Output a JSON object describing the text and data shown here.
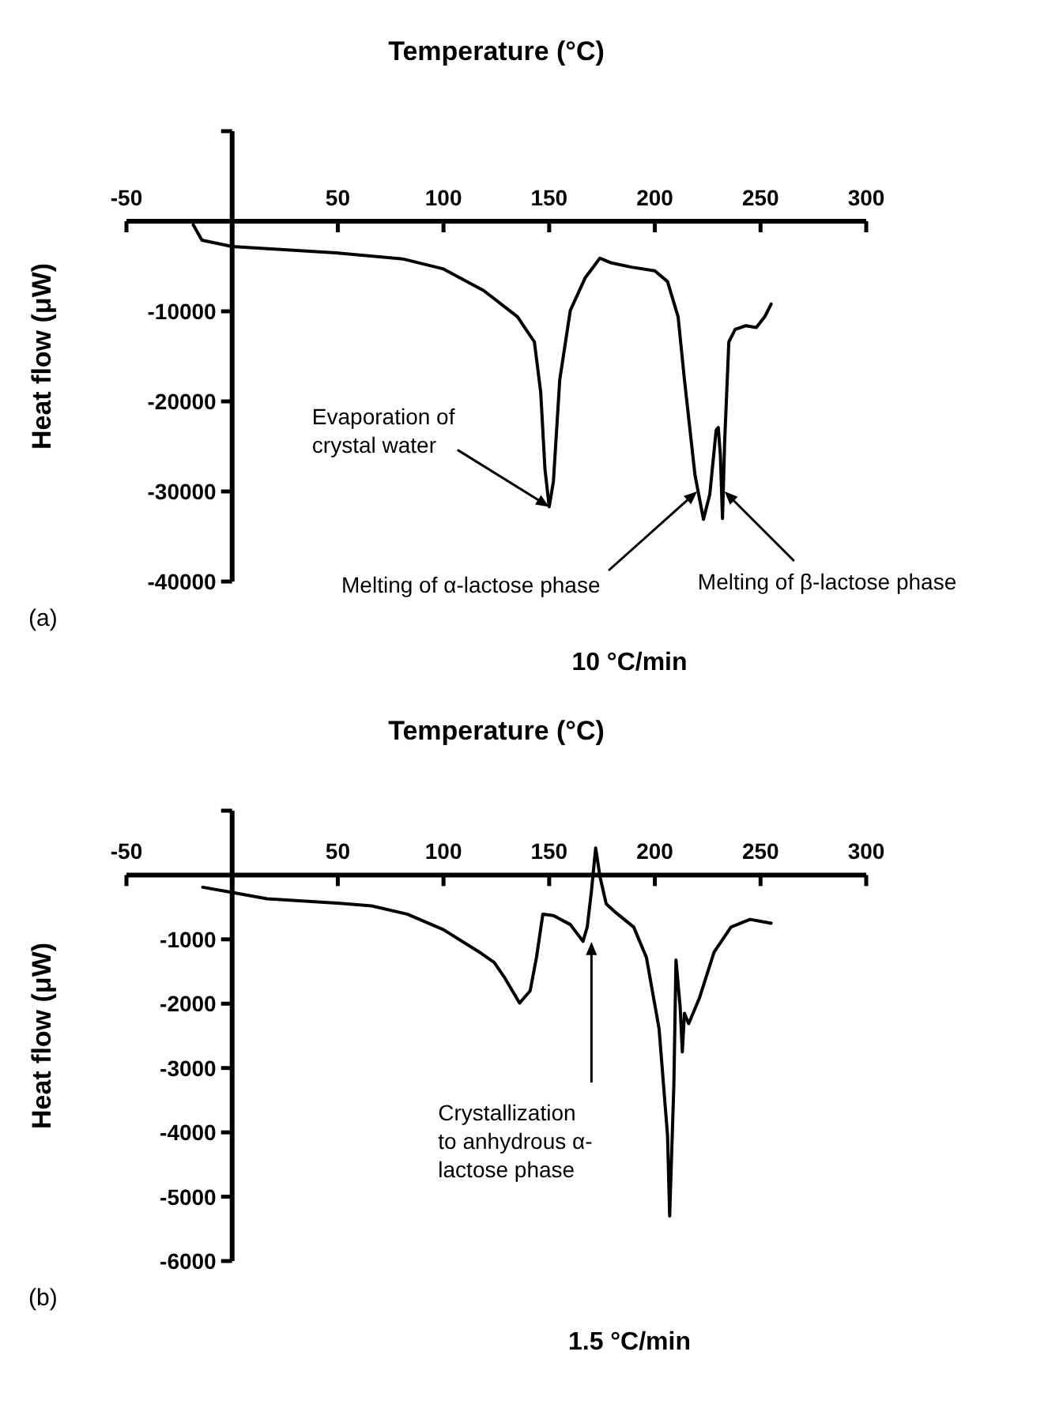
{
  "chart_data": [
    {
      "type": "line",
      "xlabel": "Temperature (°C)",
      "ylabel": "Heat flow (μW)",
      "xlim": [
        -50,
        300
      ],
      "xticks": [
        -50,
        {
          "value": 0,
          "label": null
        },
        50,
        100,
        150,
        200,
        250,
        300
      ],
      "ylim": [
        -40000,
        10000
      ],
      "yticks": [
        {
          "value": 10000,
          "label": null
        },
        -10000,
        -20000,
        -30000,
        -40000
      ],
      "grid": false,
      "legend": false,
      "marker": "none",
      "line_style": "solid",
      "series": [
        {
          "color": "#000000",
          "x": [
            -18.4,
            -14.3,
            0,
            49,
            81,
            100,
            119,
            135,
            143,
            146,
            148,
            150,
            152,
            155,
            160,
            167,
            174,
            179,
            189,
            200,
            206,
            211,
            214,
            219,
            223,
            226,
            229,
            230,
            231,
            232,
            233,
            235,
            238,
            243,
            248,
            252,
            255
          ],
          "values": [
            -400,
            -2100,
            -2800,
            -3500,
            -4200,
            -5300,
            -7700,
            -10600,
            -13400,
            -19000,
            -27500,
            -31700,
            -28900,
            -17600,
            -9900,
            -6300,
            -4100,
            -4600,
            -5100,
            -5500,
            -6700,
            -10600,
            -17600,
            -28200,
            -33100,
            -30300,
            -23200,
            -22900,
            -26000,
            -33000,
            -24600,
            -13400,
            -12000,
            -11600,
            -11800,
            -10600,
            -9200
          ]
        }
      ],
      "annotations": [
        {
          "text": "Evaporation of crystal water",
          "x": 150,
          "y": -31700
        },
        {
          "text": "Melting of α-lactose phase",
          "x": 220,
          "y": -30000
        },
        {
          "text": "Melting of β-lactose phase",
          "x": 233,
          "y": -30000
        },
        "(a)",
        "10 °C/min"
      ]
    },
    {
      "type": "line",
      "xlabel": "Temperature (°C)",
      "ylabel": "Heat flow (μW)",
      "xlim": [
        -50,
        300
      ],
      "xticks": [
        -50,
        {
          "value": 0,
          "label": null
        },
        50,
        100,
        150,
        200,
        250,
        300
      ],
      "ylim": [
        -6000,
        1000
      ],
      "yticks": [
        {
          "value": 1000,
          "label": null
        },
        -1000,
        -2000,
        -3000,
        -4000,
        -5000,
        -6000
      ],
      "grid": false,
      "legend": false,
      "marker": "none",
      "line_style": "solid",
      "series": [
        {
          "color": "#000000",
          "x": [
            -13.9,
            0,
            16.5,
            51,
            66,
            83,
            100,
            118,
            124,
            129,
            136,
            141,
            144,
            147,
            152,
            160,
            166,
            168,
            170,
            172,
            174,
            177,
            181,
            190,
            196,
            202,
            206,
            207,
            209,
            210,
            212,
            213,
            214,
            216,
            221,
            228,
            236,
            245,
            250,
            255
          ],
          "values": [
            -190,
            -270,
            -370,
            -440,
            -480,
            -610,
            -850,
            -1220,
            -1360,
            -1600,
            -1990,
            -1800,
            -1280,
            -610,
            -630,
            -770,
            -1030,
            -810,
            -250,
            420,
            -20,
            -450,
            -570,
            -810,
            -1280,
            -2390,
            -4050,
            -5300,
            -3250,
            -1320,
            -2070,
            -2750,
            -2150,
            -2310,
            -1920,
            -1200,
            -810,
            -690,
            -720,
            -750
          ]
        }
      ],
      "annotations": [
        {
          "text": "Crystallization to anhydrous α-lactose phase",
          "x": 170,
          "y": -1040
        },
        "(b)",
        "1.5 °C/min"
      ]
    }
  ]
}
